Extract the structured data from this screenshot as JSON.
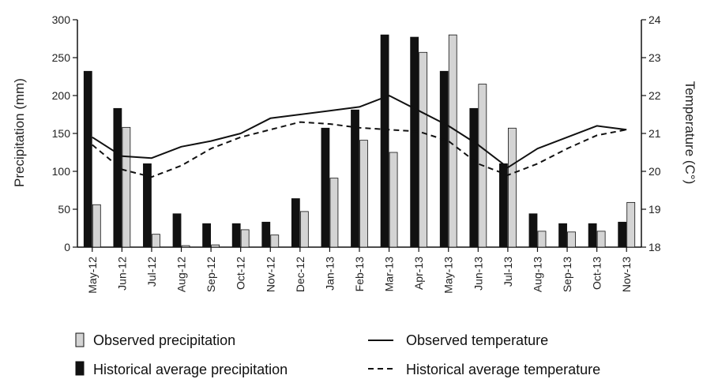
{
  "chart_data": {
    "type": "bar",
    "categories": [
      "May-12",
      "Jun-12",
      "Jul-12",
      "Aug-12",
      "Sep-12",
      "Oct-12",
      "Nov-12",
      "Dec-12",
      "Jan-13",
      "Feb-13",
      "Mar-13",
      "Apr-13",
      "May-13",
      "Jun-13",
      "Jul-13",
      "Aug-13",
      "Sep-13",
      "Oct-13",
      "Nov-13"
    ],
    "ylabel": "Precipitation (mm)",
    "y2label": "Temperature (C°)",
    "ylim": [
      0,
      300
    ],
    "y2lim": [
      18,
      24
    ],
    "yticks": [
      "0",
      "50",
      "100",
      "150",
      "200",
      "250",
      "300"
    ],
    "y2ticks": [
      "18",
      "19",
      "20",
      "21",
      "22",
      "23",
      "24"
    ],
    "series": [
      {
        "name": "Historical average precipitation",
        "kind": "bar",
        "axis": "left",
        "color": "#111111",
        "values": [
          232,
          183,
          110,
          44,
          31,
          31,
          33,
          64,
          157,
          181,
          280,
          277,
          232,
          183,
          110,
          44,
          31,
          31,
          33
        ]
      },
      {
        "name": "Observed precipitation",
        "kind": "bar",
        "axis": "left",
        "color": "#d4d4d4",
        "values": [
          56,
          158,
          17,
          2,
          3,
          23,
          16,
          47,
          91,
          141,
          125,
          257,
          280,
          215,
          157,
          21,
          20,
          21,
          59
        ]
      },
      {
        "name": "Observed temperature",
        "kind": "line",
        "axis": "right",
        "style": "solid",
        "color": "#111111",
        "values": [
          20.9,
          20.4,
          20.35,
          20.65,
          20.8,
          21.0,
          21.4,
          21.5,
          21.6,
          21.7,
          22.0,
          21.6,
          21.2,
          20.7,
          20.1,
          20.6,
          20.9,
          21.2,
          21.1
        ]
      },
      {
        "name": "Historical average temperature",
        "kind": "line",
        "axis": "right",
        "style": "dashed",
        "color": "#111111",
        "values": [
          20.7,
          20.05,
          19.85,
          20.15,
          20.6,
          20.9,
          21.1,
          21.3,
          21.25,
          21.15,
          21.1,
          21.05,
          20.8,
          20.2,
          19.9,
          20.2,
          20.6,
          20.95,
          21.1
        ]
      }
    ],
    "legend": [
      {
        "label": "Observed precipitation",
        "symbol": "bar-light"
      },
      {
        "label": "Observed temperature",
        "symbol": "line-solid"
      },
      {
        "label": "Historical average precipitation",
        "symbol": "bar-dark"
      },
      {
        "label": "Historical average temperature",
        "symbol": "line-dashed"
      }
    ],
    "legend_position": "bottom"
  }
}
